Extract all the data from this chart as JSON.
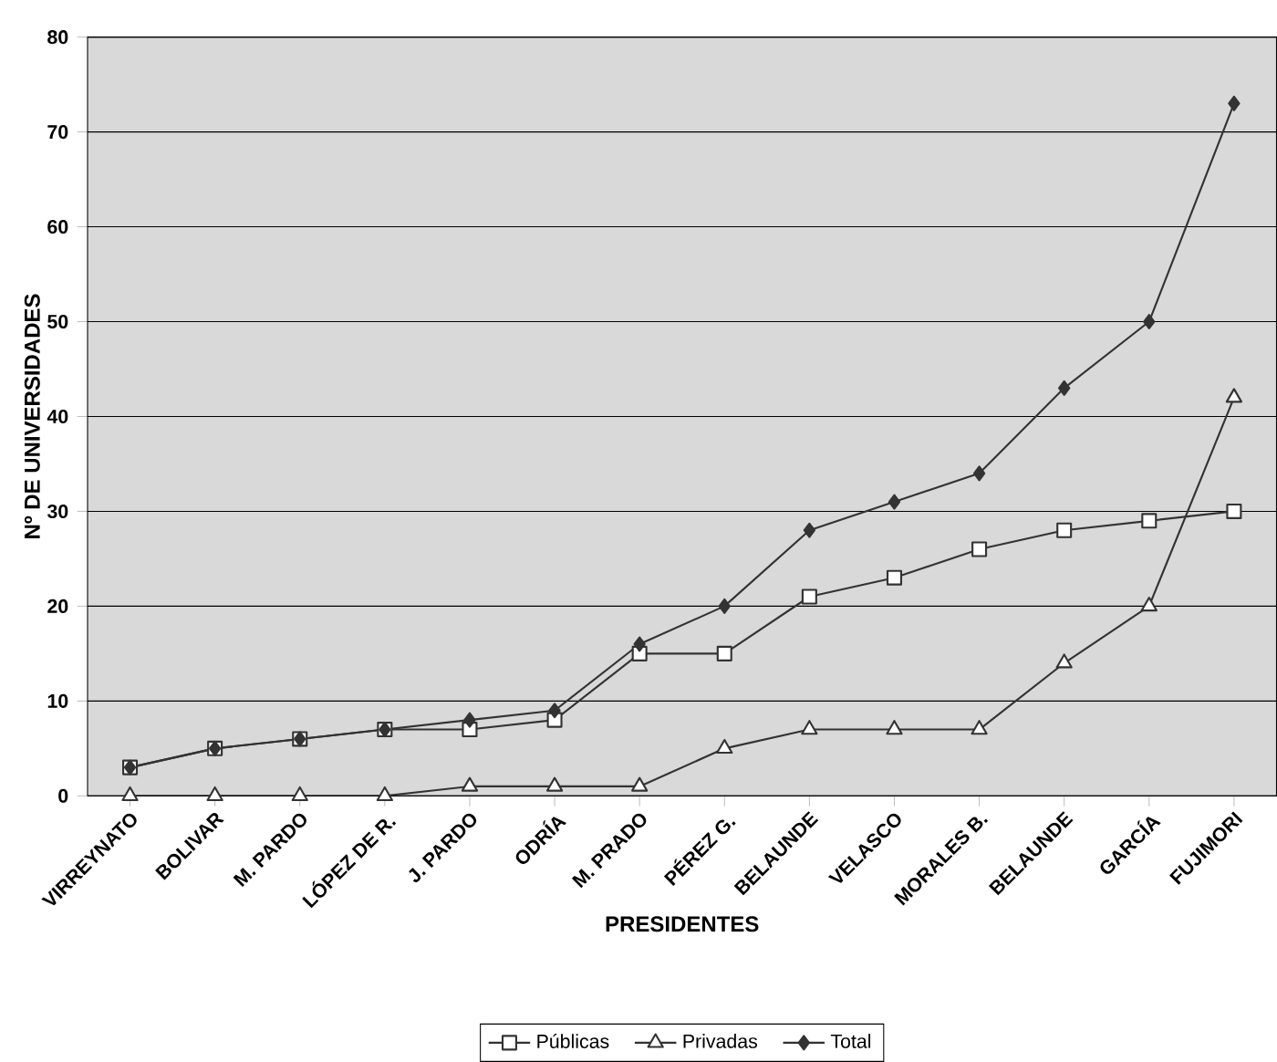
{
  "chart_data": {
    "type": "line",
    "xlabel": "PRESIDENTES",
    "ylabel": "Nº DE UNIVERSIDADES",
    "categories": [
      "VIRREYNATO",
      "BOLIVAR",
      "M. PARDO",
      "LÓPEZ DE R.",
      "J. PARDO",
      "ODRÍA",
      "M. PRADO",
      "PÉREZ G.",
      "BELAUNDE",
      "VELASCO",
      "MORALES B.",
      "BELAUNDE",
      "GARCÍA",
      "FUJIMORI"
    ],
    "series": [
      {
        "name": "Públicas",
        "color": "#333333",
        "marker": "square",
        "values": [
          3,
          5,
          6,
          7,
          7,
          8,
          15,
          15,
          21,
          23,
          26,
          28,
          29,
          30
        ]
      },
      {
        "name": "Privadas",
        "color": "#333333",
        "marker": "triangle",
        "values": [
          0,
          0,
          0,
          0,
          1,
          1,
          1,
          5,
          7,
          7,
          7,
          14,
          20,
          42
        ]
      },
      {
        "name": "Total",
        "color": "#333333",
        "marker": "diamond",
        "values": [
          3,
          5,
          6,
          7,
          8,
          9,
          16,
          20,
          28,
          31,
          34,
          43,
          50,
          73
        ]
      }
    ],
    "ylim": [
      0,
      80
    ],
    "yticks": [
      0,
      10,
      20,
      30,
      40,
      50,
      60,
      70,
      80
    ],
    "grid": "y",
    "legend": "bottom"
  }
}
